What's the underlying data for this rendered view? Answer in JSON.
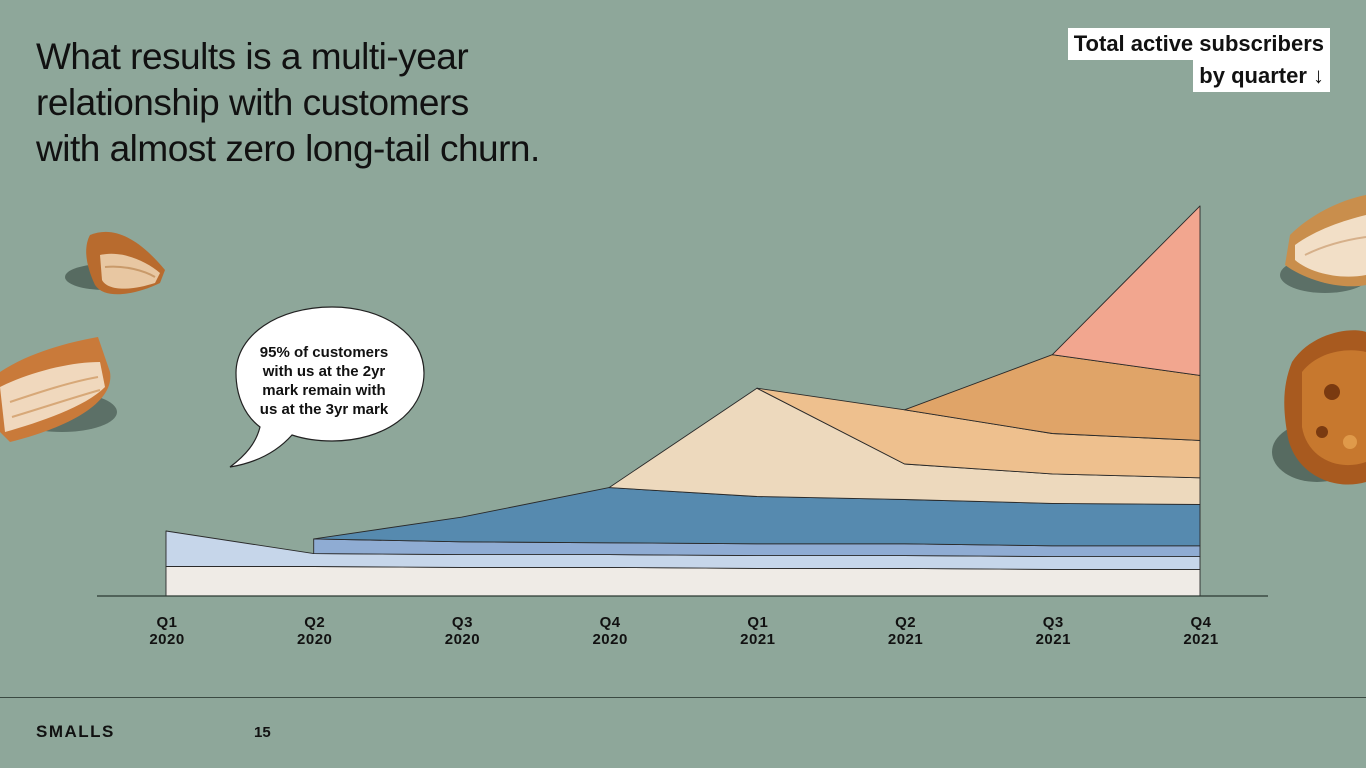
{
  "slide": {
    "headline_lines": [
      "What results is a multi-year",
      "relationship with customers",
      "with almost zero long-tail churn."
    ],
    "chart_title_lines": [
      "Total active subscribers",
      "by quarter ↓"
    ],
    "callout_lines": [
      "95% of customers",
      "with us at the 2yr",
      "mark remain with",
      "us at the 3yr mark"
    ],
    "footer_brand": "SMALLS",
    "page_number": "15",
    "colors": {
      "background": "#8ea79a"
    }
  },
  "chart_data": {
    "type": "area",
    "stacked": true,
    "title": "Total active subscribers by quarter",
    "categories": [
      {
        "q": "Q1",
        "y": "2020"
      },
      {
        "q": "Q2",
        "y": "2020"
      },
      {
        "q": "Q3",
        "y": "2020"
      },
      {
        "q": "Q4",
        "y": "2020"
      },
      {
        "q": "Q1",
        "y": "2021"
      },
      {
        "q": "Q2",
        "y": "2021"
      },
      {
        "q": "Q3",
        "y": "2021"
      },
      {
        "q": "Q4",
        "y": "2021"
      }
    ],
    "ylim": [
      0,
      400
    ],
    "grid": false,
    "series": [
      {
        "color": "#efebe6",
        "start": 0,
        "values": [
          30,
          30,
          29,
          29,
          28,
          28,
          27,
          27
        ]
      },
      {
        "color": "#c6d6ea",
        "start": 0,
        "values": [
          36,
          13,
          13,
          13,
          13,
          13,
          13,
          13
        ]
      },
      {
        "color": "#8facd3",
        "start": 1,
        "values": [
          0,
          15,
          13,
          12,
          12,
          12,
          11,
          11
        ]
      },
      {
        "color": "#568aaf",
        "start": 1,
        "values": [
          0,
          0,
          25,
          56,
          48,
          45,
          43,
          42
        ]
      },
      {
        "color": "#edd9bd",
        "start": 3,
        "values": [
          0,
          0,
          0,
          0,
          110,
          36,
          30,
          27
        ]
      },
      {
        "color": "#eec08e",
        "start": 4,
        "values": [
          0,
          0,
          0,
          0,
          0,
          55,
          41,
          38
        ]
      },
      {
        "color": "#e0a468",
        "start": 5,
        "values": [
          0,
          0,
          0,
          0,
          0,
          0,
          80,
          66
        ]
      },
      {
        "color": "#f2a68f",
        "start": 6,
        "values": [
          0,
          0,
          0,
          0,
          0,
          0,
          0,
          172
        ]
      }
    ]
  }
}
